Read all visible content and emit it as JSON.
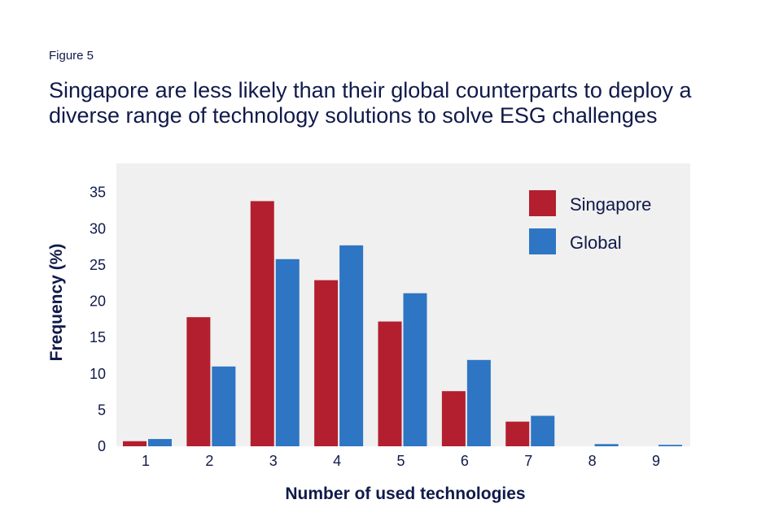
{
  "figure_label": "Figure 5",
  "chart_data": {
    "type": "bar",
    "title": "Singapore are less likely than their global counterparts to deploy a diverse range of technology solutions to solve ESG challenges",
    "xlabel": "Number of used technologies",
    "ylabel": "Frequency (%)",
    "categories": [
      "1",
      "2",
      "3",
      "4",
      "5",
      "6",
      "7",
      "8",
      "9"
    ],
    "series": [
      {
        "name": "Singapore",
        "color": "#b31f2e",
        "values": [
          0.7,
          17.8,
          33.8,
          22.9,
          17.2,
          7.6,
          3.4,
          0,
          0
        ]
      },
      {
        "name": "Global",
        "color": "#2e75c4",
        "values": [
          1.0,
          11.0,
          25.8,
          27.7,
          21.1,
          11.9,
          4.2,
          0.3,
          0.2
        ]
      }
    ],
    "yticks": [
      0,
      5,
      10,
      15,
      20,
      25,
      30,
      35
    ],
    "ylim": [
      0,
      39
    ],
    "grid": false,
    "legend_position": "top-right",
    "plot_background": "#f0f0f0"
  }
}
